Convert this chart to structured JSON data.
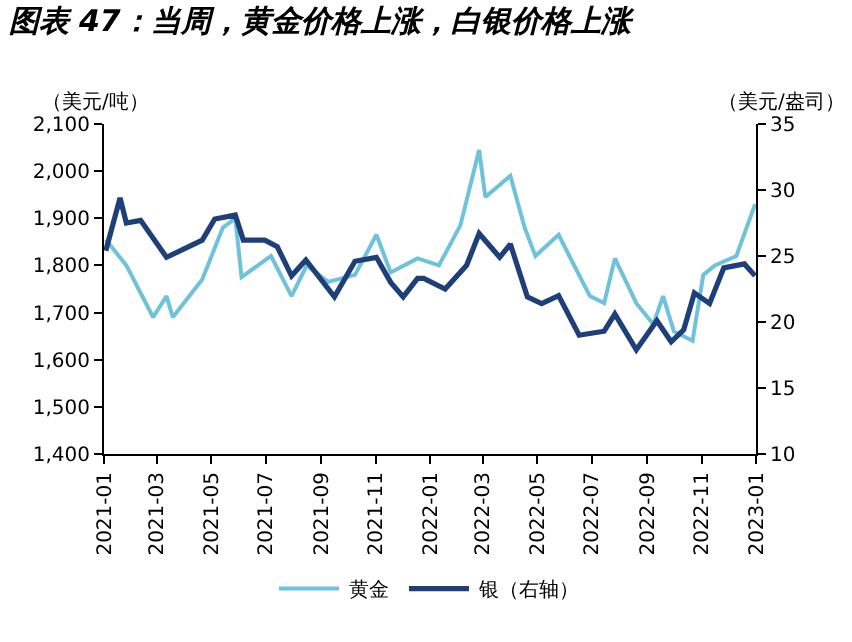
{
  "chart_data": {
    "type": "line",
    "title": "图表 47：当周，黄金价格上涨，白银价格上涨",
    "ylabel": "（美元/吨）",
    "y2label": "（美元/盎司）",
    "xlim": [
      "2021-01-01",
      "2023-01-01"
    ],
    "xticks": [
      {
        "value": "2021-01-01",
        "label": "2021-01"
      },
      {
        "value": "2021-03-01",
        "label": "2021-03"
      },
      {
        "value": "2021-05-01",
        "label": "2021-05"
      },
      {
        "value": "2021-07-01",
        "label": "2021-07"
      },
      {
        "value": "2021-09-01",
        "label": "2021-09"
      },
      {
        "value": "2021-11-01",
        "label": "2021-11"
      },
      {
        "value": "2022-01-01",
        "label": "2022-01"
      },
      {
        "value": "2022-03-01",
        "label": "2022-03"
      },
      {
        "value": "2022-05-01",
        "label": "2022-05"
      },
      {
        "value": "2022-07-01",
        "label": "2022-07"
      },
      {
        "value": "2022-09-01",
        "label": "2022-09"
      },
      {
        "value": "2022-11-01",
        "label": "2022-11"
      },
      {
        "value": "2023-01-01",
        "label": "2023-01"
      }
    ],
    "ylim": [
      1400,
      2100
    ],
    "yticks": [
      {
        "value": 1400,
        "label": "1,400"
      },
      {
        "value": 1500,
        "label": "1,500"
      },
      {
        "value": 1600,
        "label": "1,600"
      },
      {
        "value": 1700,
        "label": "1,700"
      },
      {
        "value": 1800,
        "label": "1,800"
      },
      {
        "value": 1900,
        "label": "1,900"
      },
      {
        "value": 2000,
        "label": "2,000"
      },
      {
        "value": 2100,
        "label": "2,100"
      }
    ],
    "y2lim": [
      10,
      35
    ],
    "y2ticks": [
      10,
      15,
      20,
      25,
      30,
      35
    ],
    "grid": false,
    "legend": "bottom",
    "line_style": "solid",
    "marker": "none",
    "series": [
      {
        "name": "黄金",
        "color": "#6ec3da",
        "x": [
          "2021-01-03",
          "2021-01-26",
          "2021-02-25",
          "2021-03-12",
          "2021-03-19",
          "2021-04-21",
          "2021-05-14",
          "2021-05-28",
          "2021-06-04",
          "2021-07-07",
          "2021-07-30",
          "2021-08-16",
          "2021-09-09",
          "2021-10-09",
          "2021-11-02",
          "2021-11-18",
          "2021-12-18",
          "2022-01-11",
          "2022-02-04",
          "2022-02-25",
          "2022-03-04",
          "2022-04-01",
          "2022-04-17",
          "2022-04-29",
          "2022-05-25",
          "2022-06-06",
          "2022-06-29",
          "2022-07-15",
          "2022-07-27",
          "2022-08-20",
          "2022-09-08",
          "2022-09-19",
          "2022-10-01",
          "2022-10-22",
          "2022-11-03",
          "2022-11-16",
          "2022-12-10",
          "2022-12-31"
        ],
        "values": [
          1855,
          1800,
          1690,
          1735,
          1690,
          1770,
          1880,
          1900,
          1775,
          1820,
          1735,
          1800,
          1765,
          1780,
          1865,
          1785,
          1815,
          1800,
          1885,
          2045,
          1945,
          1990,
          1880,
          1820,
          1865,
          1820,
          1735,
          1720,
          1815,
          1720,
          1675,
          1735,
          1660,
          1640,
          1780,
          1800,
          1820,
          1930
        ]
      },
      {
        "name": "银（右轴）",
        "color": "#1f3f7a",
        "axis": "y2",
        "x": [
          "2021-01-03",
          "2021-01-19",
          "2021-01-26",
          "2021-02-11",
          "2021-03-12",
          "2021-04-21",
          "2021-05-05",
          "2021-05-28",
          "2021-06-06",
          "2021-06-30",
          "2021-07-14",
          "2021-07-30",
          "2021-08-15",
          "2021-09-16",
          "2021-10-09",
          "2021-11-02",
          "2021-11-18",
          "2021-12-02",
          "2021-12-18",
          "2021-12-25",
          "2022-01-18",
          "2022-02-11",
          "2022-02-25",
          "2022-03-20",
          "2022-04-01",
          "2022-04-20",
          "2022-05-06",
          "2022-05-25",
          "2022-06-17",
          "2022-07-15",
          "2022-07-27",
          "2022-08-20",
          "2022-09-12",
          "2022-09-28",
          "2022-10-12",
          "2022-10-24",
          "2022-11-10",
          "2022-11-26",
          "2022-12-19",
          "2022-12-31"
        ],
        "values": [
          25.4,
          29.4,
          27.5,
          27.7,
          24.9,
          26.2,
          27.8,
          28.1,
          26.2,
          26.2,
          25.7,
          23.5,
          24.7,
          21.9,
          24.6,
          24.9,
          23.0,
          21.9,
          23.3,
          23.3,
          22.5,
          24.3,
          26.7,
          24.9,
          25.9,
          21.9,
          21.4,
          22.0,
          19.0,
          19.3,
          20.6,
          17.9,
          20.1,
          18.5,
          19.4,
          22.2,
          21.4,
          24.1,
          24.4,
          23.5
        ]
      }
    ]
  }
}
